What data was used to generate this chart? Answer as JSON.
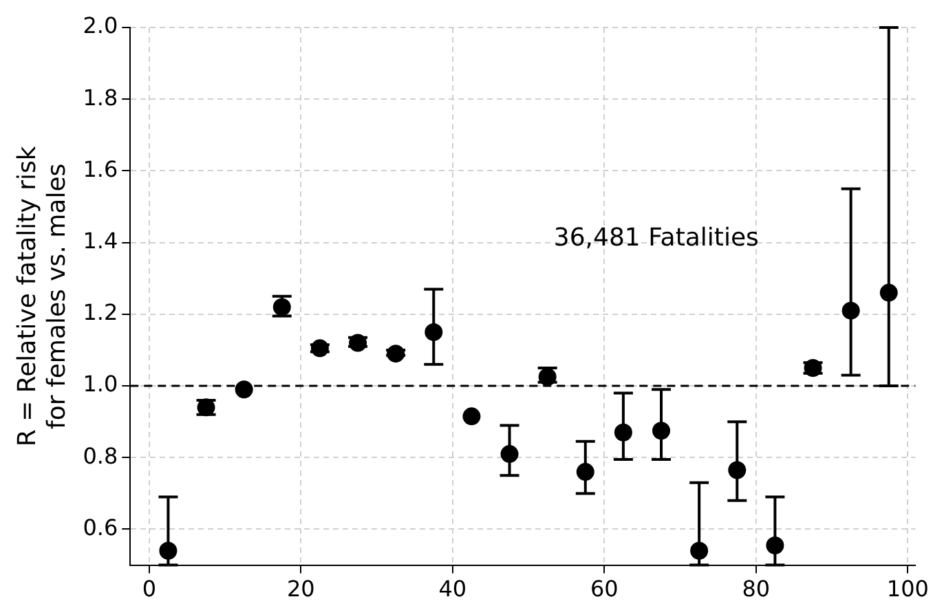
{
  "chart_data": {
    "type": "scatter",
    "ylabel": "R = Relative fatality risk\nfor females vs. males",
    "x": [
      2.5,
      7.5,
      12.5,
      17.5,
      22.5,
      27.5,
      32.5,
      37.5,
      42.5,
      47.5,
      52.5,
      57.5,
      62.5,
      67.5,
      72.5,
      77.5,
      82.5,
      87.5,
      92.5,
      97.5
    ],
    "series": [
      {
        "color": "#000000",
        "values": [
          0.54,
          0.94,
          0.99,
          1.22,
          1.105,
          1.12,
          1.09,
          1.15,
          0.915,
          0.81,
          1.025,
          0.76,
          0.87,
          0.875,
          0.54,
          0.765,
          0.555,
          1.05,
          1.21,
          1.26
        ],
        "errors": [
          [
            0.5,
            0.69
          ],
          [
            0.92,
            0.96
          ],
          null,
          [
            1.195,
            1.25
          ],
          [
            1.095,
            1.115
          ],
          [
            1.11,
            1.135
          ],
          [
            1.085,
            1.1
          ],
          [
            1.06,
            1.27
          ],
          null,
          [
            0.75,
            0.89
          ],
          [
            1.01,
            1.05
          ],
          [
            0.7,
            0.845
          ],
          [
            0.795,
            0.98
          ],
          [
            0.795,
            0.99
          ],
          [
            0.5,
            0.73
          ],
          [
            0.68,
            0.9
          ],
          [
            0.5,
            0.69
          ],
          [
            1.035,
            1.065
          ],
          [
            1.03,
            1.55
          ],
          [
            1.0,
            2.0
          ]
        ]
      }
    ],
    "xlim": [
      -2.5,
      101
    ],
    "xticks": [
      0,
      20,
      40,
      60,
      80,
      100
    ],
    "ylim": [
      0.5,
      2.0
    ],
    "yticks": [
      {
        "value": 0.6,
        "label": "0.6"
      },
      {
        "value": 0.8,
        "label": "0.8"
      },
      {
        "value": 1.0,
        "label": "1.0"
      },
      {
        "value": 1.2,
        "label": "1.2"
      },
      {
        "value": 1.4,
        "label": "1.4"
      },
      {
        "value": 1.6,
        "label": "1.6"
      },
      {
        "value": 1.8,
        "label": "1.8"
      },
      {
        "value": 2.0,
        "label": "2.0"
      }
    ],
    "ref_lines": [
      {
        "axis": "y",
        "value": 1.0,
        "color": "#000000",
        "line_style": "dashed"
      }
    ],
    "annotations": [
      "36,481 Fatalities"
    ],
    "grid": true,
    "legend": false,
    "marker": "circle"
  }
}
